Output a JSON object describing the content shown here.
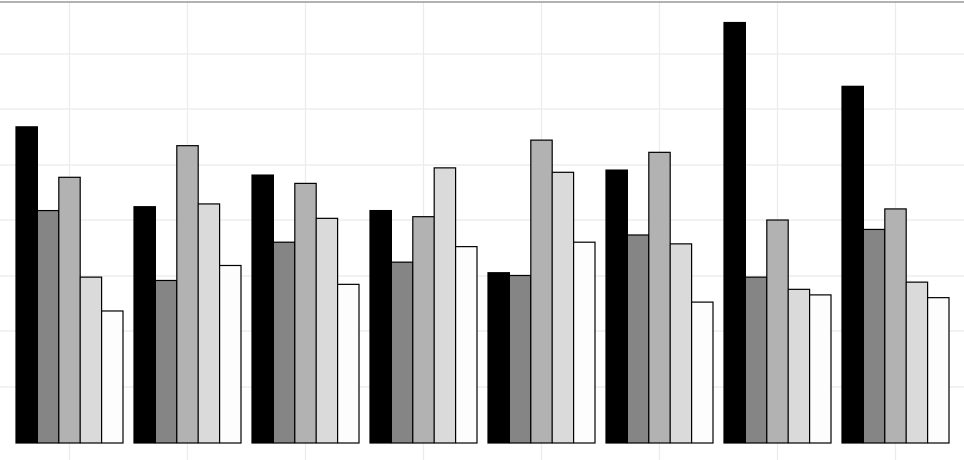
{
  "chart_data": {
    "type": "bar",
    "title": "",
    "xlabel": "",
    "ylabel": "",
    "categories": [
      "",
      "",
      "",
      "",
      "",
      "",
      "",
      ""
    ],
    "series": [
      {
        "color": "#000000",
        "values": [
          570,
          426,
          483,
          419,
          307,
          492,
          758,
          643
        ]
      },
      {
        "color": "#858585",
        "values": [
          419,
          293,
          362,
          326,
          302,
          375,
          299,
          385
        ]
      },
      {
        "color": "#b2b2b2",
        "values": [
          479,
          536,
          468,
          408,
          546,
          524,
          402,
          422
        ]
      },
      {
        "color": "#dadada",
        "values": [
          299,
          431,
          405,
          496,
          488,
          359,
          277,
          290
        ]
      },
      {
        "color": "#fdfdfd",
        "values": [
          238,
          320,
          286,
          354,
          362,
          254,
          267,
          262
        ]
      }
    ],
    "ylim": [
      0,
      795
    ],
    "grid": true,
    "legend": "none"
  }
}
